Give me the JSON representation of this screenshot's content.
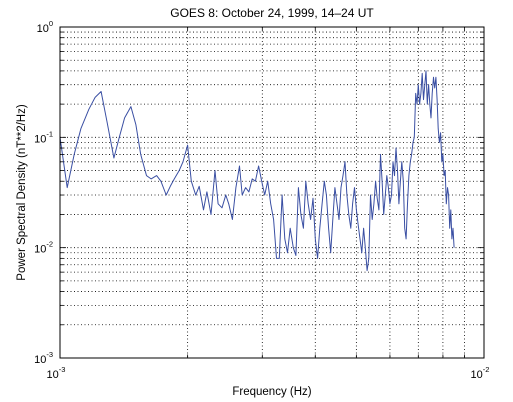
{
  "chart_data": {
    "type": "line",
    "title": "GOES 8:  October 24, 1999, 14–24 UT",
    "xlabel": "Frequency (Hz)",
    "ylabel": "Power Spectral Density (nT**2/Hz)",
    "x_scale": "log",
    "y_scale": "log",
    "xlim": [
      0.001,
      0.01
    ],
    "ylim": [
      0.001,
      1
    ],
    "grid": true,
    "legend": "none",
    "x_ticks": [
      {
        "base": "10",
        "exp": "-3",
        "value": 0.001
      },
      {
        "base": "10",
        "exp": "-2",
        "value": 0.01
      }
    ],
    "y_ticks": [
      {
        "base": "10",
        "exp": "-3",
        "value": 0.001
      },
      {
        "base": "10",
        "exp": "-2",
        "value": 0.01
      },
      {
        "base": "10",
        "exp": "-1",
        "value": 0.1
      },
      {
        "base": "10",
        "exp": "0",
        "value": 1
      }
    ],
    "line_color": "#3a4fa3",
    "series": [
      {
        "x": [
          0.001,
          0.00104,
          0.00108,
          0.00112,
          0.00117,
          0.00121,
          0.00125,
          0.00129,
          0.00134,
          0.00138,
          0.00142,
          0.00147,
          0.00151,
          0.00155,
          0.0016,
          0.00164,
          0.00169,
          0.00173,
          0.00178,
          0.00182,
          0.00186,
          0.00191,
          0.00195,
          0.002,
          0.00204,
          0.00209,
          0.00213,
          0.00218,
          0.00222,
          0.00227,
          0.00232,
          0.00236,
          0.00241,
          0.00246,
          0.0025,
          0.00255,
          0.0026,
          0.00265,
          0.00269,
          0.00274,
          0.00279,
          0.00284,
          0.00289,
          0.00294,
          0.00299,
          0.00304,
          0.00309,
          0.00314,
          0.00319,
          0.00324,
          0.00329,
          0.00334,
          0.00339,
          0.00344,
          0.00349,
          0.00355,
          0.0036,
          0.00365,
          0.0037,
          0.00375,
          0.0038,
          0.00385,
          0.0039,
          0.00395,
          0.004,
          0.00405,
          0.0041,
          0.00415,
          0.0042,
          0.00425,
          0.0043,
          0.00435,
          0.0044,
          0.00445,
          0.0045,
          0.00455,
          0.0046,
          0.00465,
          0.0047,
          0.00475,
          0.0048,
          0.00485,
          0.0049,
          0.00495,
          0.005,
          0.00505,
          0.0051,
          0.00515,
          0.0052,
          0.00525,
          0.0053,
          0.00535,
          0.0054,
          0.00545,
          0.0055,
          0.00555,
          0.0056,
          0.00565,
          0.0057,
          0.00575,
          0.0058,
          0.00585,
          0.0059,
          0.00595,
          0.006,
          0.00605,
          0.0061,
          0.00615,
          0.0062,
          0.00625,
          0.0063,
          0.00635,
          0.0064,
          0.00645,
          0.0065,
          0.00655,
          0.0066,
          0.00665,
          0.0067,
          0.00675,
          0.0068,
          0.00685,
          0.0069,
          0.00695,
          0.007,
          0.00705,
          0.0071,
          0.00715,
          0.0072,
          0.00725,
          0.0073,
          0.00735,
          0.0074,
          0.00745,
          0.0075,
          0.00755,
          0.0076,
          0.00765,
          0.0077,
          0.00775,
          0.0078,
          0.00785,
          0.0079,
          0.00795,
          0.008,
          0.00805,
          0.0081,
          0.00815,
          0.0082,
          0.00825,
          0.0083,
          0.00835,
          0.0084,
          0.00845,
          0.0085
        ],
        "y": [
          0.1,
          0.035,
          0.07,
          0.12,
          0.18,
          0.23,
          0.26,
          0.14,
          0.065,
          0.1,
          0.15,
          0.19,
          0.13,
          0.07,
          0.045,
          0.042,
          0.045,
          0.04,
          0.03,
          0.036,
          0.042,
          0.05,
          0.06,
          0.085,
          0.04,
          0.03,
          0.036,
          0.022,
          0.032,
          0.02,
          0.05,
          0.025,
          0.023,
          0.03,
          0.025,
          0.018,
          0.035,
          0.055,
          0.03,
          0.035,
          0.032,
          0.042,
          0.04,
          0.055,
          0.04,
          0.03,
          0.04,
          0.025,
          0.018,
          0.008,
          0.008,
          0.03,
          0.012,
          0.009,
          0.015,
          0.01,
          0.0085,
          0.035,
          0.02,
          0.015,
          0.04,
          0.025,
          0.018,
          0.028,
          0.012,
          0.008,
          0.015,
          0.025,
          0.04,
          0.03,
          0.015,
          0.009,
          0.018,
          0.035,
          0.025,
          0.018,
          0.035,
          0.045,
          0.06,
          0.03,
          0.02,
          0.015,
          0.025,
          0.035,
          0.022,
          0.016,
          0.012,
          0.009,
          0.015,
          0.01,
          0.0062,
          0.008,
          0.03,
          0.018,
          0.025,
          0.04,
          0.028,
          0.022,
          0.07,
          0.04,
          0.02,
          0.03,
          0.045,
          0.035,
          0.025,
          0.03,
          0.06,
          0.045,
          0.08,
          0.05,
          0.025,
          0.04,
          0.06,
          0.04,
          0.015,
          0.012,
          0.025,
          0.045,
          0.06,
          0.07,
          0.09,
          0.1,
          0.25,
          0.2,
          0.3,
          0.2,
          0.25,
          0.38,
          0.22,
          0.3,
          0.4,
          0.2,
          0.3,
          0.2,
          0.15,
          0.25,
          0.35,
          0.28,
          0.35,
          0.22,
          0.12,
          0.09,
          0.11,
          0.06,
          0.07,
          0.045,
          0.05,
          0.025,
          0.035,
          0.03,
          0.015,
          0.022,
          0.012,
          0.015,
          0.01
        ],
        "color": "#3a4fa3"
      }
    ]
  }
}
